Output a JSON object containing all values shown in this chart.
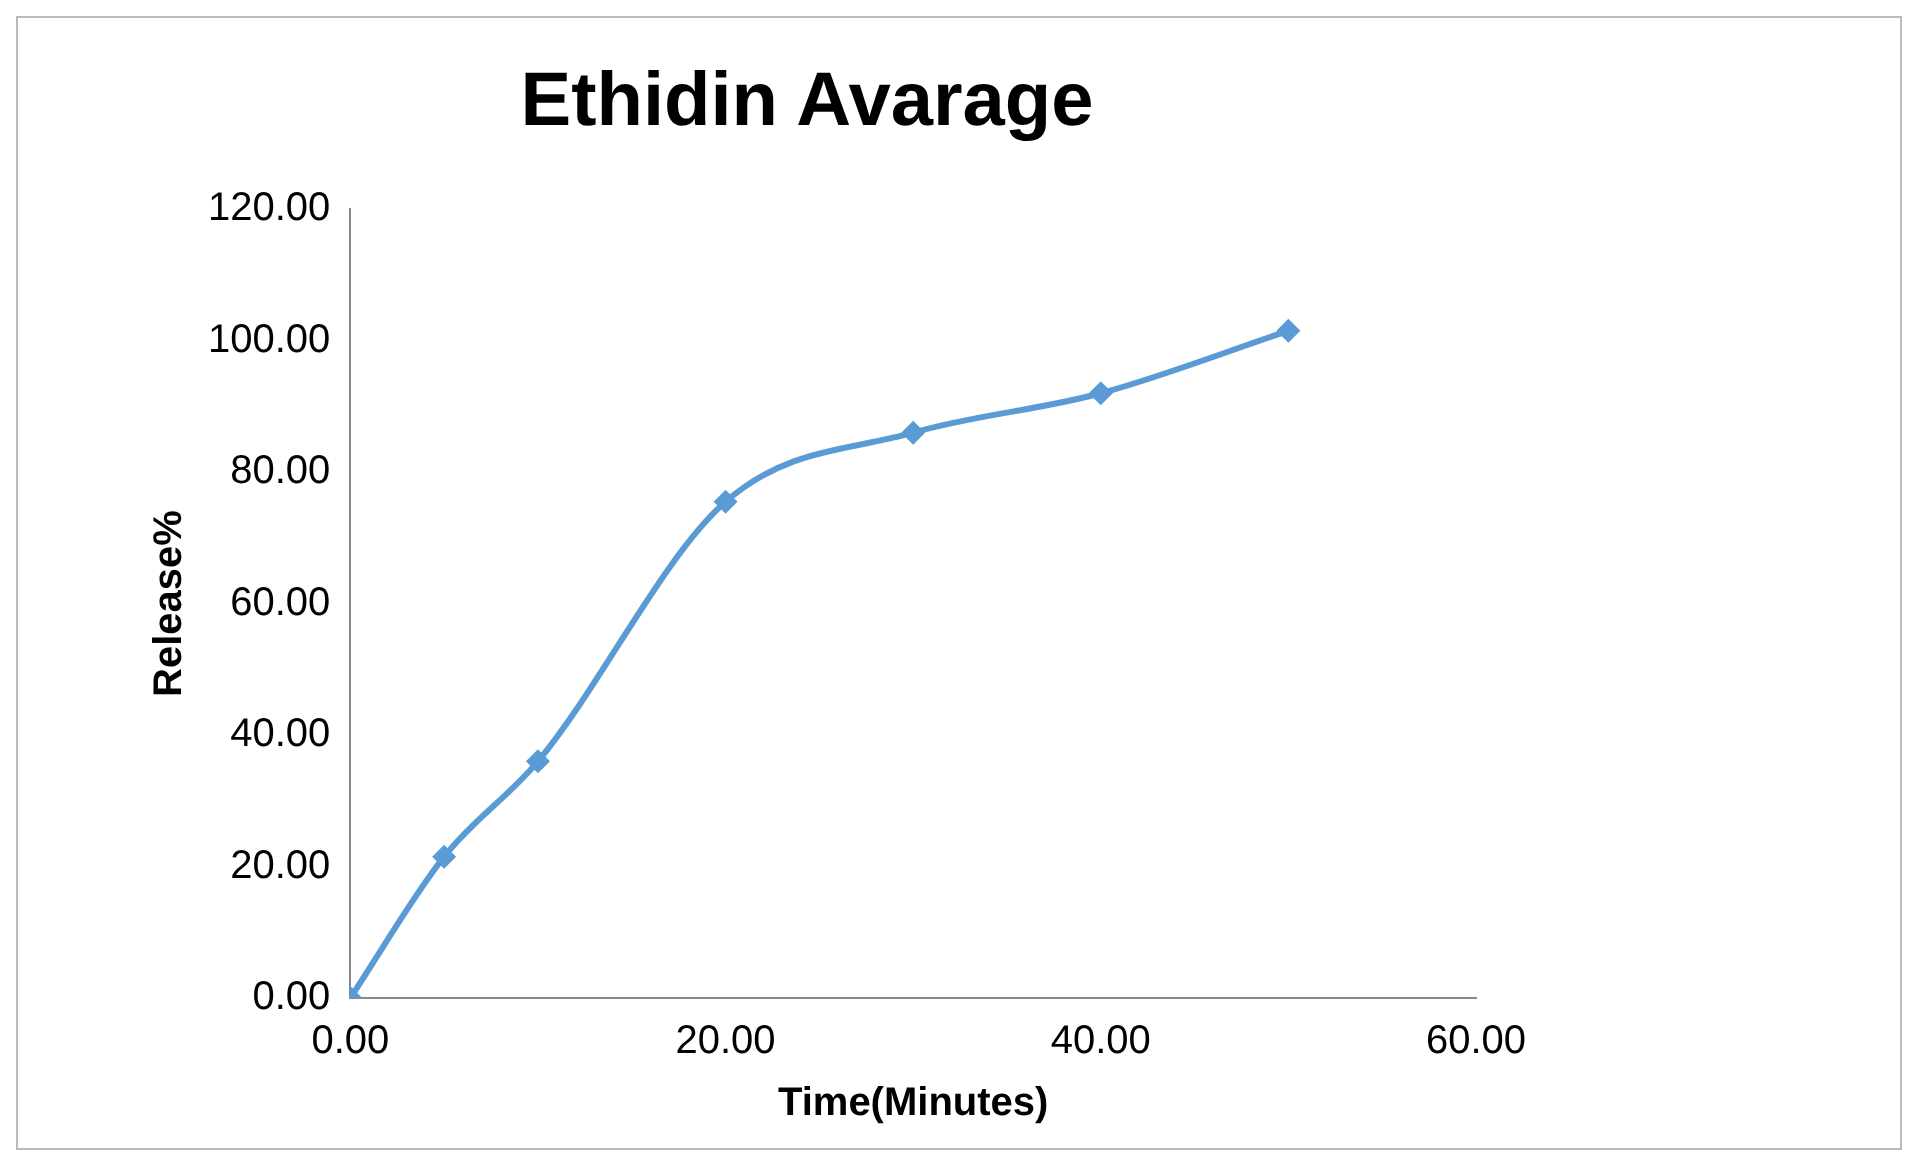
{
  "chart_data": {
    "type": "line",
    "title": "Ethidin Avarage",
    "xlabel": "Time(Minutes)",
    "ylabel": "Release%",
    "series": [
      {
        "color": "#5b9bd5",
        "x": [
          0,
          5,
          10,
          20,
          30,
          40,
          50
        ],
        "values": [
          0,
          21.5,
          36,
          75.5,
          86,
          92,
          101.5
        ]
      }
    ],
    "xlim": [
      0,
      60
    ],
    "xticks": [
      {
        "value": 0,
        "label": "0.00"
      },
      {
        "value": 20,
        "label": "20.00"
      },
      {
        "value": 40,
        "label": "40.00"
      },
      {
        "value": 60,
        "label": "60.00"
      }
    ],
    "ylim": [
      0,
      120
    ],
    "yticks": [
      {
        "value": 0,
        "label": "0.00"
      },
      {
        "value": 20,
        "label": "20.00"
      },
      {
        "value": 40,
        "label": "40.00"
      },
      {
        "value": 60,
        "label": "60.00"
      },
      {
        "value": 80,
        "label": "80.00"
      },
      {
        "value": 100,
        "label": "100.00"
      },
      {
        "value": 120,
        "label": "120.00"
      }
    ],
    "grid": false,
    "legend": false,
    "marker": "diamond",
    "line_style": "solid"
  }
}
